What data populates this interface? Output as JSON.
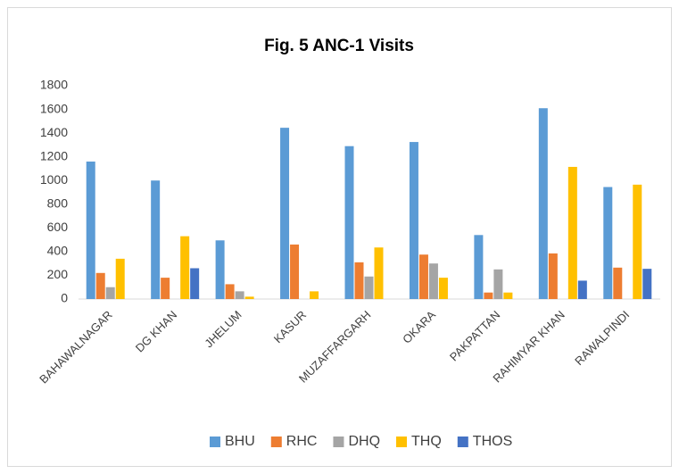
{
  "chart_data": {
    "type": "bar",
    "title": "Fig. 5 ANC-1 Visits",
    "categories": [
      "BAHAWALNAGAR",
      "DG KHAN",
      "JHELUM",
      "KASUR",
      "MUZAFFARGARH",
      "OKARA",
      "PAKPATTAN",
      "RAHIMYAR KHAN",
      "RAWALPINDI"
    ],
    "series": [
      {
        "name": "BHU",
        "color": "#5b9bd5",
        "values": [
          1160,
          1000,
          495,
          1445,
          1290,
          1325,
          540,
          1610,
          945
        ]
      },
      {
        "name": "RHC",
        "color": "#ed7d31",
        "values": [
          220,
          180,
          125,
          460,
          310,
          375,
          55,
          385,
          265
        ]
      },
      {
        "name": "DHQ",
        "color": "#a5a5a5",
        "values": [
          100,
          0,
          65,
          0,
          190,
          300,
          250,
          0,
          0
        ]
      },
      {
        "name": "THQ",
        "color": "#ffc000",
        "values": [
          340,
          530,
          20,
          65,
          435,
          180,
          55,
          1115,
          965
        ]
      },
      {
        "name": "THOS",
        "color": "#4472c4",
        "values": [
          0,
          260,
          0,
          0,
          0,
          0,
          0,
          155,
          255
        ]
      }
    ],
    "ylim": [
      0,
      1800
    ],
    "yticks": [
      0,
      200,
      400,
      600,
      800,
      1000,
      1200,
      1400,
      1600,
      1800
    ],
    "grid": false,
    "legend": "bottom"
  }
}
